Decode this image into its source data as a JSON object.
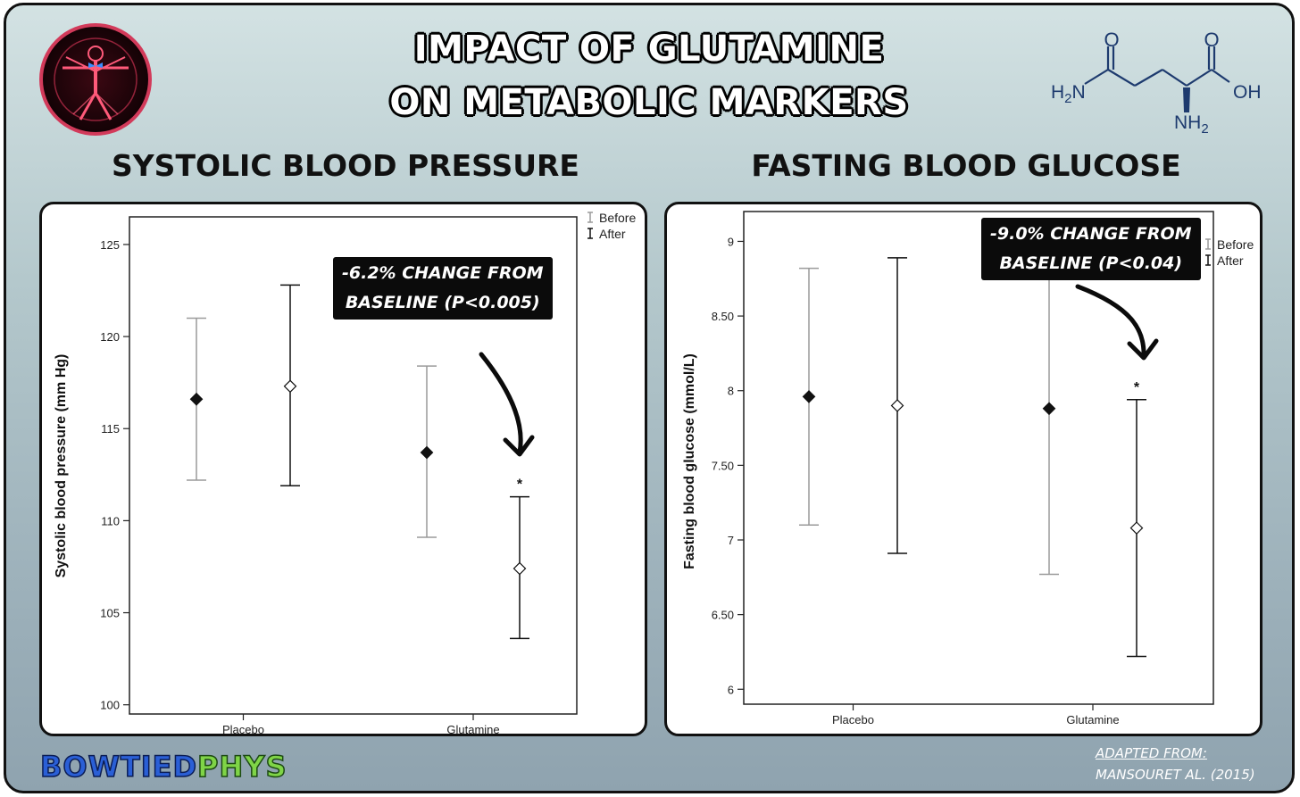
{
  "title_line1": "IMPACT OF GLUTAMINE",
  "title_line2": "ON METABOLIC MARKERS",
  "brand_part1": "BOWTIED",
  "brand_part2": "PHYS",
  "source_line1": "ADAPTED FROM:",
  "source_line2": "MANSOURET AL. (2015)",
  "molecule_labels": {
    "o_left": "O",
    "o_right": "O",
    "h2n": "H2N",
    "oh": "OH",
    "nh2": "NH2"
  },
  "colors": {
    "before": "#9a9a9a",
    "after": "#111111",
    "callout_bg": "#0b0b0b",
    "brand_blue": "#2a5fd6",
    "brand_green": "#7fd447"
  },
  "chart_data": [
    {
      "type": "errorbar",
      "title": "SYSTOLIC BLOOD PRESSURE",
      "xlabel": "",
      "ylabel": "Systolic  blood pressure (mm Hg)",
      "categories": [
        "Placebo",
        "Glutamine"
      ],
      "ylim": [
        99.5,
        126.5
      ],
      "yticks": [
        100,
        105,
        110,
        115,
        120,
        125
      ],
      "ytick_labels": [
        "100",
        "105",
        "110",
        "115",
        "120",
        "125"
      ],
      "legend": {
        "position": "top-right",
        "entries": [
          "Before",
          "After"
        ]
      },
      "series": [
        {
          "name": "Before",
          "marker": "filled-diamond",
          "mean": [
            116.6,
            113.7
          ],
          "lower": [
            112.2,
            109.1
          ],
          "upper": [
            121.0,
            118.4
          ]
        },
        {
          "name": "After",
          "marker": "open-diamond",
          "mean": [
            117.3,
            107.4
          ],
          "lower": [
            111.9,
            103.6
          ],
          "upper": [
            122.8,
            111.3
          ]
        }
      ],
      "significance": {
        "category": "Glutamine",
        "series": "After",
        "symbol": "*"
      },
      "annotation_line1": "-6.2% CHANGE FROM",
      "annotation_line2": "BASELINE (P<0.005)"
    },
    {
      "type": "errorbar",
      "title": "FASTING BLOOD GLUCOSE",
      "xlabel": "",
      "ylabel": "Fasting blood glucose (mmol/L)",
      "categories": [
        "Placebo",
        "Glutamine"
      ],
      "ylim": [
        5.9,
        9.2
      ],
      "yticks": [
        6,
        6.5,
        7,
        7.5,
        8,
        8.5,
        9
      ],
      "ytick_labels": [
        "6",
        "6.50",
        "7",
        "7.50",
        "8",
        "8.50",
        "9"
      ],
      "legend": {
        "position": "top-right",
        "entries": [
          "Before",
          "After"
        ]
      },
      "series": [
        {
          "name": "Before",
          "marker": "filled-diamond",
          "mean": [
            7.96,
            7.88
          ],
          "lower": [
            7.1,
            6.77
          ],
          "upper": [
            8.82,
            9.0
          ]
        },
        {
          "name": "After",
          "marker": "open-diamond",
          "mean": [
            7.9,
            7.08
          ],
          "lower": [
            6.91,
            6.22
          ],
          "upper": [
            8.89,
            7.94
          ]
        }
      ],
      "significance": {
        "category": "Glutamine",
        "series": "After",
        "symbol": "*"
      },
      "annotation_line1": "-9.0% CHANGE FROM",
      "annotation_line2": "BASELINE (P<0.04)"
    }
  ]
}
